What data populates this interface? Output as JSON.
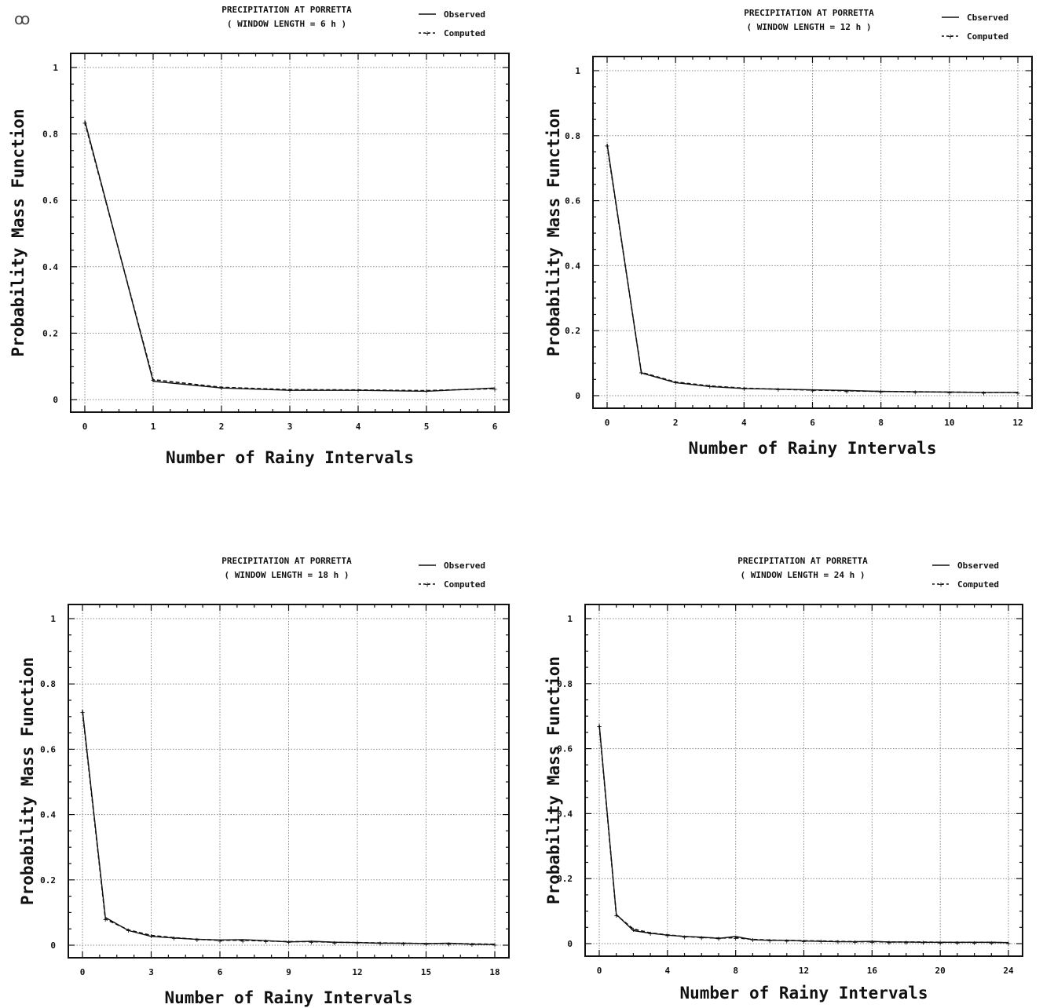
{
  "corner_mark": "ꝏ",
  "colors": {
    "ink": "#111111",
    "grid": "#8a8a8a",
    "bg": "#ffffff"
  },
  "legend": {
    "observed": "Observed",
    "computed": "Computed",
    "observed_alt": "Cbserved"
  },
  "chart_data": [
    {
      "type": "line",
      "title": "PRECIPITATION AT PORRETTA",
      "subtitle": "( WINDOW LENGTH =  6 h )",
      "xlabel": "Number of Rainy Intervals",
      "ylabel": "Probability Mass Function",
      "xlim": [
        0,
        6
      ],
      "ylim": [
        0,
        1
      ],
      "xticks": [
        "0",
        "1",
        "2",
        "3",
        "4",
        "5",
        "6"
      ],
      "xtick_values": [
        0,
        1,
        2,
        3,
        4,
        5,
        6
      ],
      "yticks": [
        "0",
        "0.2",
        "0.4",
        "0.6",
        "0.8",
        "1"
      ],
      "ytick_values": [
        0,
        0.2,
        0.4,
        0.6,
        0.8,
        1
      ],
      "grid": true,
      "legend_position": "top-right",
      "series": [
        {
          "name": "Observed",
          "style": "solid",
          "x": [
            0,
            1,
            2,
            3,
            4,
            5,
            6
          ],
          "y": [
            0.84,
            0.055,
            0.035,
            0.028,
            0.028,
            0.025,
            0.035
          ]
        },
        {
          "name": "Computed",
          "style": "dashed",
          "x": [
            0,
            1,
            2,
            3,
            4,
            5,
            6
          ],
          "y": [
            0.835,
            0.06,
            0.037,
            0.03,
            0.029,
            0.027,
            0.033
          ]
        }
      ]
    },
    {
      "type": "line",
      "title": "PRECIPITATION AT PORRETTA",
      "subtitle": "( WINDOW LENGTH = 12 h )",
      "xlabel": "Number of Rainy Intervals",
      "ylabel": "Probability Mass Function",
      "xlim": [
        0,
        12
      ],
      "ylim": [
        0,
        1
      ],
      "xticks": [
        "0",
        "2",
        "4",
        "6",
        "8",
        "10",
        "12"
      ],
      "xtick_values": [
        0,
        2,
        4,
        6,
        8,
        10,
        12
      ],
      "yticks": [
        "0",
        "0.2",
        "0.4",
        "0.6",
        "0.8",
        "1"
      ],
      "ytick_values": [
        0,
        0.2,
        0.4,
        0.6,
        0.8,
        1
      ],
      "grid": true,
      "legend_position": "top-right",
      "series": [
        {
          "name": "Cbserved",
          "style": "solid",
          "x": [
            0,
            1,
            2,
            3,
            4,
            5,
            6,
            7,
            8,
            9,
            10,
            11,
            12
          ],
          "y": [
            0.775,
            0.07,
            0.04,
            0.028,
            0.022,
            0.02,
            0.018,
            0.016,
            0.013,
            0.012,
            0.011,
            0.01,
            0.01
          ]
        },
        {
          "name": "Computed",
          "style": "dashed",
          "x": [
            0,
            1,
            2,
            3,
            4,
            5,
            6,
            7,
            8,
            9,
            10,
            11,
            12
          ],
          "y": [
            0.77,
            0.072,
            0.042,
            0.03,
            0.023,
            0.02,
            0.017,
            0.015,
            0.013,
            0.012,
            0.011,
            0.01,
            0.01
          ]
        }
      ]
    },
    {
      "type": "line",
      "title": "PRECIPITATION AT PORRETTA",
      "subtitle": "( WINDOW LENGTH = 18 h )",
      "xlabel": "Number of Rainy Intervals",
      "ylabel": "Probability Mass Function",
      "xlim": [
        0,
        18
      ],
      "ylim": [
        0,
        1
      ],
      "xticks": [
        "0",
        "3",
        "6",
        "9",
        "12",
        "15",
        "18"
      ],
      "xtick_values": [
        0,
        3,
        6,
        9,
        12,
        15,
        18
      ],
      "yticks": [
        "0",
        "0.2",
        "0.4",
        "0.6",
        "0.8",
        "1"
      ],
      "ytick_values": [
        0,
        0.2,
        0.4,
        0.6,
        0.8,
        1
      ],
      "grid": true,
      "legend_position": "top-right",
      "series": [
        {
          "name": "Observed",
          "style": "solid",
          "x": [
            0,
            1,
            2,
            3,
            4,
            5,
            6,
            7,
            8,
            9,
            10,
            11,
            12,
            13,
            14,
            15,
            16,
            17,
            18
          ],
          "y": [
            0.72,
            0.085,
            0.045,
            0.027,
            0.022,
            0.018,
            0.016,
            0.017,
            0.014,
            0.01,
            0.012,
            0.009,
            0.008,
            0.006,
            0.006,
            0.005,
            0.006,
            0.003,
            0.002
          ]
        },
        {
          "name": "Computed",
          "style": "dashed",
          "x": [
            0,
            1,
            2,
            3,
            4,
            5,
            6,
            7,
            8,
            9,
            10,
            11,
            12,
            13,
            14,
            15,
            16,
            17,
            18
          ],
          "y": [
            0.715,
            0.08,
            0.047,
            0.03,
            0.023,
            0.018,
            0.015,
            0.015,
            0.013,
            0.011,
            0.011,
            0.009,
            0.008,
            0.007,
            0.006,
            0.005,
            0.005,
            0.004,
            0.003
          ]
        }
      ]
    },
    {
      "type": "line",
      "title": "PRECIPITATION AT PORRETTA",
      "subtitle": "( WINDOW LENGTH = 24 h )",
      "xlabel": "Number of Rainy Intervals",
      "ylabel": "Probability Mass Function",
      "xlim": [
        0,
        24
      ],
      "ylim": [
        0,
        1
      ],
      "xticks": [
        "0",
        "4",
        "8",
        "12",
        "16",
        "20",
        "24"
      ],
      "xtick_values": [
        0,
        4,
        8,
        12,
        16,
        20,
        24
      ],
      "yticks": [
        "0",
        "0.2",
        "0.4",
        "0.6",
        "0.8",
        "1"
      ],
      "ytick_values": [
        0,
        0.2,
        0.4,
        0.6,
        0.8,
        1
      ],
      "grid": true,
      "legend_position": "top-right",
      "series": [
        {
          "name": "Observed",
          "style": "solid",
          "x": [
            0,
            1,
            2,
            3,
            4,
            5,
            6,
            7,
            8,
            9,
            10,
            11,
            12,
            13,
            14,
            15,
            16,
            17,
            18,
            19,
            20,
            21,
            22,
            23,
            24
          ],
          "y": [
            0.675,
            0.09,
            0.04,
            0.032,
            0.026,
            0.022,
            0.02,
            0.016,
            0.022,
            0.012,
            0.01,
            0.01,
            0.008,
            0.007,
            0.006,
            0.006,
            0.007,
            0.005,
            0.005,
            0.004,
            0.004,
            0.004,
            0.004,
            0.004,
            0.003
          ]
        },
        {
          "name": "Computed",
          "style": "dashed",
          "x": [
            0,
            1,
            2,
            3,
            4,
            5,
            6,
            7,
            8,
            9,
            10,
            11,
            12,
            13,
            14,
            15,
            16,
            17,
            18,
            19,
            20,
            21,
            22,
            23,
            24
          ],
          "y": [
            0.67,
            0.088,
            0.045,
            0.033,
            0.027,
            0.022,
            0.019,
            0.017,
            0.018,
            0.013,
            0.011,
            0.01,
            0.009,
            0.008,
            0.007,
            0.006,
            0.006,
            0.005,
            0.005,
            0.005,
            0.004,
            0.004,
            0.004,
            0.004,
            0.003
          ]
        }
      ]
    }
  ]
}
